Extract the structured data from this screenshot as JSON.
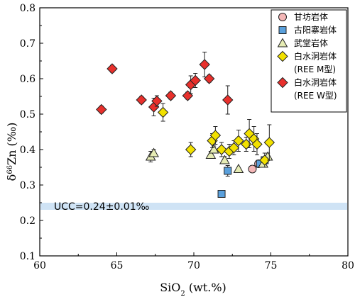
{
  "chart_data": {
    "type": "scatter",
    "xlabel_main": "SiO",
    "xlabel_sub": "2",
    "xlabel_rest": " (wt.%)",
    "ylabel_delta": "δ",
    "ylabel_sup": "66",
    "ylabel_rest": "Zn (‰)",
    "xlim": [
      60,
      80
    ],
    "ylim": [
      0.1,
      0.8
    ],
    "x_ticks": [
      "60",
      "65",
      "70",
      "75",
      "80"
    ],
    "y_ticks": [
      "0.1",
      "0.2",
      "0.3",
      "0.4",
      "0.5",
      "0.6",
      "0.7",
      "0.8"
    ],
    "grid": false,
    "legend_position": "top-right",
    "reference_band": {
      "label": "UCC=0.24±0.01‰",
      "y_center": 0.24,
      "half_width": 0.01,
      "color": "#cfe3f5"
    },
    "series": [
      {
        "name": "甘坊岩体",
        "marker": "circle",
        "color": "#f4b7b7",
        "points": [
          {
            "x": 73.8,
            "y": 0.345,
            "err": 0.01
          },
          {
            "x": 74.2,
            "y": 0.36,
            "err": 0.01
          }
        ]
      },
      {
        "name": "古阳寨岩体",
        "marker": "square",
        "color": "#5aa0dc",
        "points": [
          {
            "x": 71.8,
            "y": 0.275,
            "err": 0.0
          },
          {
            "x": 72.2,
            "y": 0.34,
            "err": 0.015
          },
          {
            "x": 74.3,
            "y": 0.36,
            "err": 0.0
          },
          {
            "x": 74.6,
            "y": 0.37,
            "err": 0.0
          }
        ]
      },
      {
        "name": "武堂岩体",
        "marker": "triangle",
        "color": "#e6ecb4",
        "points": [
          {
            "x": 67.2,
            "y": 0.38,
            "err": 0.015
          },
          {
            "x": 67.4,
            "y": 0.39,
            "err": 0.01
          },
          {
            "x": 71.1,
            "y": 0.385,
            "err": 0.01
          },
          {
            "x": 71.3,
            "y": 0.4,
            "err": 0.01
          },
          {
            "x": 72.0,
            "y": 0.37,
            "err": 0.01
          },
          {
            "x": 72.9,
            "y": 0.345,
            "err": 0.0
          },
          {
            "x": 74.5,
            "y": 0.36,
            "err": 0.01
          },
          {
            "x": 74.8,
            "y": 0.38,
            "err": 0.01
          }
        ]
      },
      {
        "name": "白水洞岩体",
        "name_sub": "(REE M型)",
        "marker": "diamond",
        "color": "#f2e100",
        "points": [
          {
            "x": 68.0,
            "y": 0.505,
            "err": 0.025
          },
          {
            "x": 69.8,
            "y": 0.4,
            "err": 0.02
          },
          {
            "x": 71.2,
            "y": 0.425,
            "err": 0.02
          },
          {
            "x": 71.4,
            "y": 0.44,
            "err": 0.025
          },
          {
            "x": 71.8,
            "y": 0.4,
            "err": 0.02
          },
          {
            "x": 72.3,
            "y": 0.395,
            "err": 0.02
          },
          {
            "x": 72.6,
            "y": 0.405,
            "err": 0.02
          },
          {
            "x": 72.9,
            "y": 0.425,
            "err": 0.03
          },
          {
            "x": 73.4,
            "y": 0.415,
            "err": 0.02
          },
          {
            "x": 73.6,
            "y": 0.445,
            "err": 0.04
          },
          {
            "x": 73.9,
            "y": 0.43,
            "err": 0.035
          },
          {
            "x": 74.1,
            "y": 0.415,
            "err": 0.03
          },
          {
            "x": 74.6,
            "y": 0.37,
            "err": 0.02
          },
          {
            "x": 74.9,
            "y": 0.42,
            "err": 0.05
          }
        ]
      },
      {
        "name": "白水洞岩体",
        "name_sub": "(REE W型)",
        "marker": "diamond",
        "color": "#e8302c",
        "points": [
          {
            "x": 64.0,
            "y": 0.513,
            "err": 0.01
          },
          {
            "x": 64.7,
            "y": 0.628,
            "err": 0.01
          },
          {
            "x": 66.6,
            "y": 0.54,
            "err": 0.01
          },
          {
            "x": 67.4,
            "y": 0.52,
            "err": 0.025
          },
          {
            "x": 67.6,
            "y": 0.537,
            "err": 0.015
          },
          {
            "x": 68.5,
            "y": 0.552,
            "err": 0.01
          },
          {
            "x": 69.6,
            "y": 0.552,
            "err": 0.01
          },
          {
            "x": 69.8,
            "y": 0.583,
            "err": 0.025
          },
          {
            "x": 70.1,
            "y": 0.595,
            "err": 0.02
          },
          {
            "x": 70.7,
            "y": 0.64,
            "err": 0.035
          },
          {
            "x": 71.0,
            "y": 0.6,
            "err": 0.01
          },
          {
            "x": 72.2,
            "y": 0.54,
            "err": 0.04
          }
        ]
      }
    ]
  }
}
